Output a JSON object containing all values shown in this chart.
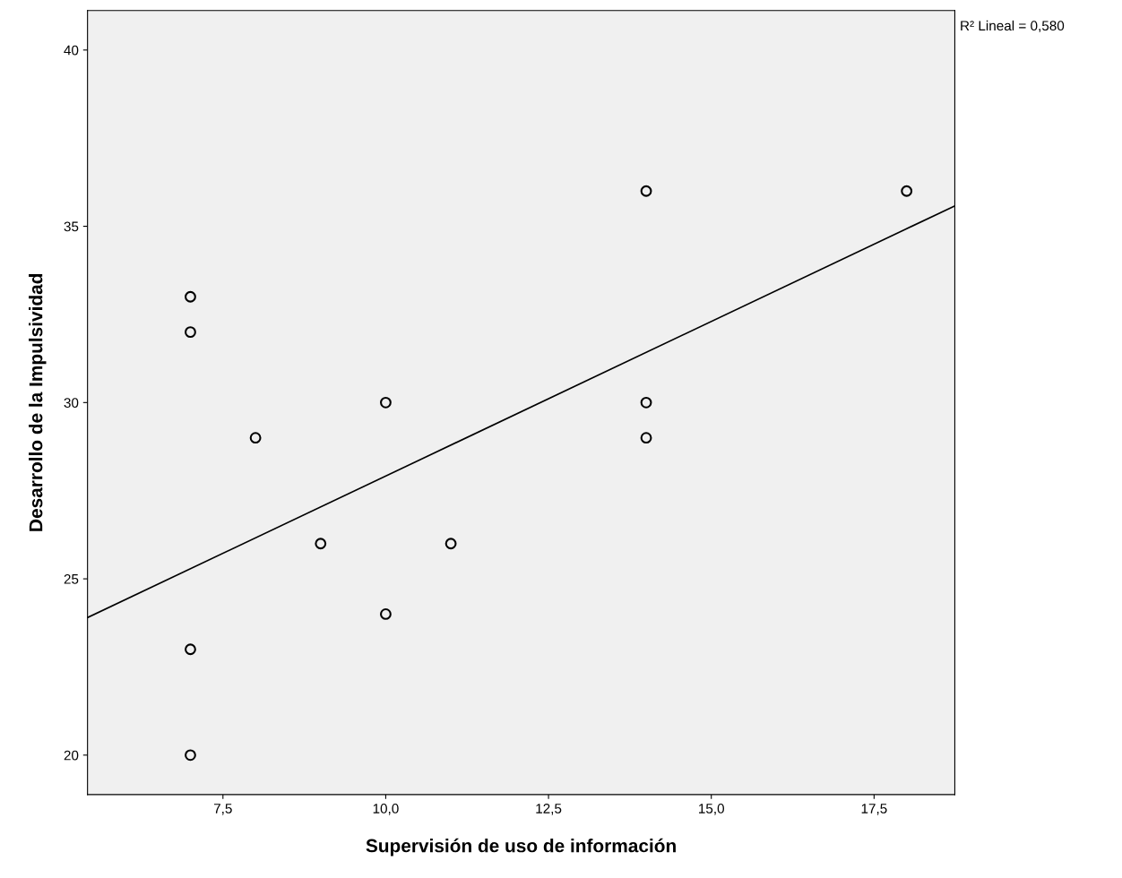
{
  "chart_data": {
    "type": "scatter",
    "xlabel": "Supervisión de uso de información",
    "ylabel": "Desarrollo de la Impulsividad",
    "xlim": [
      5.42,
      18.74
    ],
    "ylim": [
      18.88,
      41.12
    ],
    "xticks": [
      {
        "value": 7.5,
        "label": "7,5"
      },
      {
        "value": 10.0,
        "label": "10,0"
      },
      {
        "value": 12.5,
        "label": "12,5"
      },
      {
        "value": 15.0,
        "label": "15,0"
      },
      {
        "value": 17.5,
        "label": "17,5"
      }
    ],
    "yticks": [
      20,
      25,
      30,
      35,
      40
    ],
    "grid": false,
    "legend": false,
    "annotations": [
      "R² Lineal = 0,580"
    ],
    "series": [
      {
        "marker": "circle",
        "color": "#000000",
        "x": [
          7,
          7,
          7,
          7,
          8,
          9,
          10,
          10,
          11,
          14,
          14,
          14,
          18
        ],
        "values": [
          33,
          32,
          23,
          20,
          29,
          26,
          30,
          24,
          26,
          36,
          30,
          29,
          36
        ]
      },
      {
        "type": "line",
        "marker": "none",
        "color": "#000000",
        "x": [
          5.42,
          18.74
        ],
        "values": [
          23.9,
          35.58
        ]
      }
    ]
  }
}
